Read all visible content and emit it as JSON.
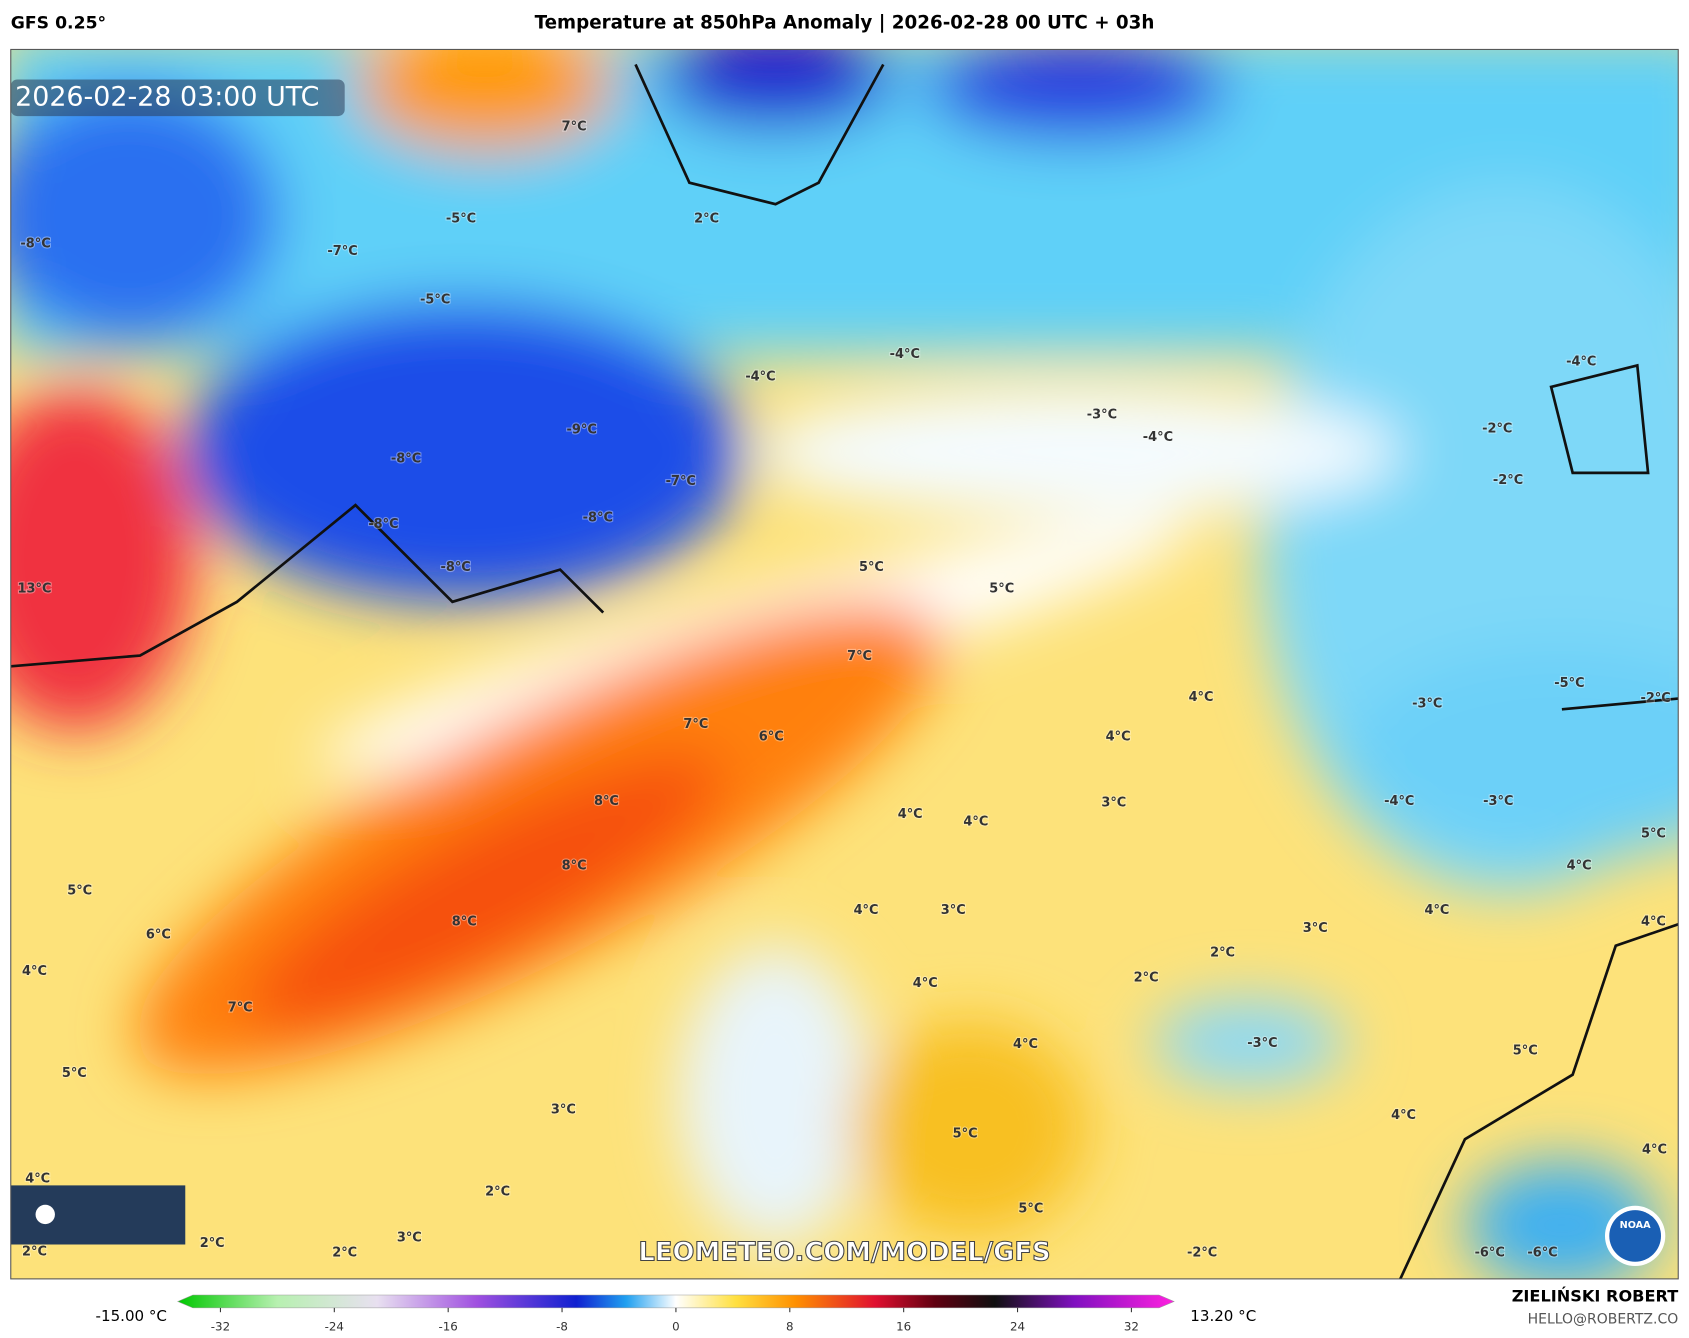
{
  "header": {
    "model": "GFS 0.25°",
    "title": "Temperature at 850hPa Anomaly | 2026-02-28 00 UTC + 03h"
  },
  "map": {
    "timestamp": "2026-02-28 03:00 UTC",
    "watermark": "LEOMETEO.COM/MODEL/GFS",
    "logo": "NOAA",
    "labels": [
      "7°C",
      "2°C",
      "-5°C",
      "-8°C",
      "-7°C",
      "-5°C",
      "-4°C",
      "-4°C",
      "-3°C",
      "-4°C",
      "-4°C",
      "-2°C",
      "-2°C",
      "-9°C",
      "-8°C",
      "-7°C",
      "-8°C",
      "-8°C",
      "-8°C",
      "13°C",
      "5°C",
      "5°C",
      "7°C",
      "4°C",
      "-5°C",
      "-3°C",
      "-2°C",
      "7°C",
      "6°C",
      "4°C",
      "8°C",
      "4°C",
      "4°C",
      "3°C",
      "-4°C",
      "-3°C",
      "5°C",
      "8°C",
      "4°C",
      "5°C",
      "4°C",
      "3°C",
      "4°C",
      "6°C",
      "8°C",
      "3°C",
      "4°C",
      "2°C",
      "4°C",
      "2°C",
      "4°C",
      "7°C",
      "4°C",
      "-3°C",
      "5°C",
      "5°C",
      "3°C",
      "4°C",
      "5°C",
      "4°C",
      "4°C",
      "2°C",
      "5°C",
      "2°C",
      "3°C",
      "2°C",
      "2°C",
      "-2°C",
      "-6°C",
      "-6°C"
    ]
  },
  "colorbar": {
    "min_label": "-15.00 °C",
    "max_label": "13.20 °C",
    "lim": [
      -35,
      35
    ],
    "ticks": [
      -32,
      -24,
      -16,
      -8,
      0,
      8,
      16,
      24,
      32
    ]
  },
  "footer": {
    "author": "ZIELIŃSKI ROBERT",
    "email": "HELLO@ROBERTZ.CO"
  }
}
